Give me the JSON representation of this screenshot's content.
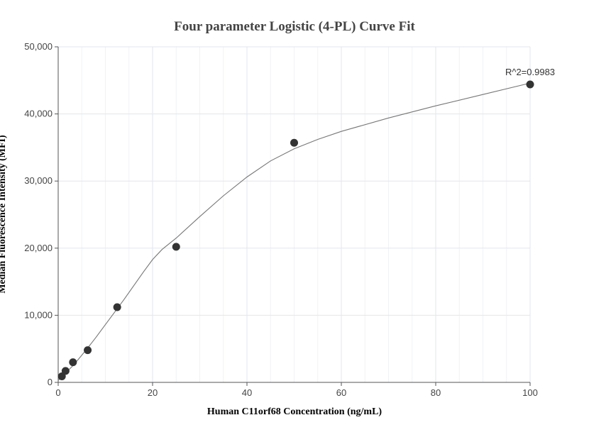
{
  "chart_data": {
    "type": "scatter",
    "title": "Four parameter Logistic (4-PL) Curve Fit",
    "xlabel": "Human C11orf68 Concentration (ng/mL)",
    "ylabel": "Median Fluorescence Intensity (MFI)",
    "xlim": [
      0,
      100
    ],
    "ylim": [
      0,
      50000
    ],
    "x_ticks": [
      0,
      20,
      40,
      60,
      80,
      100
    ],
    "y_ticks": [
      0,
      10000,
      20000,
      30000,
      40000,
      50000
    ],
    "x_tick_labels": [
      "0",
      "20",
      "40",
      "60",
      "80",
      "100"
    ],
    "y_tick_labels": [
      "0",
      "10,000",
      "20,000",
      "30,000",
      "40,000",
      "50,000"
    ],
    "grid": true,
    "annotation": "R^2=0.9983",
    "marker_color": "#333333",
    "curve_color": "#777777",
    "points": [
      {
        "x": 0.78,
        "y": 900
      },
      {
        "x": 1.56,
        "y": 1700
      },
      {
        "x": 3.13,
        "y": 3000
      },
      {
        "x": 6.25,
        "y": 4800
      },
      {
        "x": 12.5,
        "y": 11200
      },
      {
        "x": 25,
        "y": 20200
      },
      {
        "x": 50,
        "y": 35700
      },
      {
        "x": 100,
        "y": 44400
      }
    ],
    "curve": [
      {
        "x": 0,
        "y": 300
      },
      {
        "x": 1,
        "y": 1000
      },
      {
        "x": 2,
        "y": 1700
      },
      {
        "x": 3,
        "y": 2400
      },
      {
        "x": 4,
        "y": 3200
      },
      {
        "x": 6,
        "y": 4900
      },
      {
        "x": 8,
        "y": 6700
      },
      {
        "x": 10,
        "y": 8600
      },
      {
        "x": 12,
        "y": 10500
      },
      {
        "x": 14,
        "y": 12400
      },
      {
        "x": 16,
        "y": 14400
      },
      {
        "x": 18,
        "y": 16400
      },
      {
        "x": 20,
        "y": 18300
      },
      {
        "x": 22,
        "y": 19800
      },
      {
        "x": 25,
        "y": 21500
      },
      {
        "x": 30,
        "y": 24700
      },
      {
        "x": 35,
        "y": 27800
      },
      {
        "x": 40,
        "y": 30600
      },
      {
        "x": 45,
        "y": 33000
      },
      {
        "x": 50,
        "y": 34800
      },
      {
        "x": 55,
        "y": 36200
      },
      {
        "x": 60,
        "y": 37400
      },
      {
        "x": 70,
        "y": 39400
      },
      {
        "x": 80,
        "y": 41200
      },
      {
        "x": 90,
        "y": 42900
      },
      {
        "x": 100,
        "y": 44600
      }
    ]
  }
}
